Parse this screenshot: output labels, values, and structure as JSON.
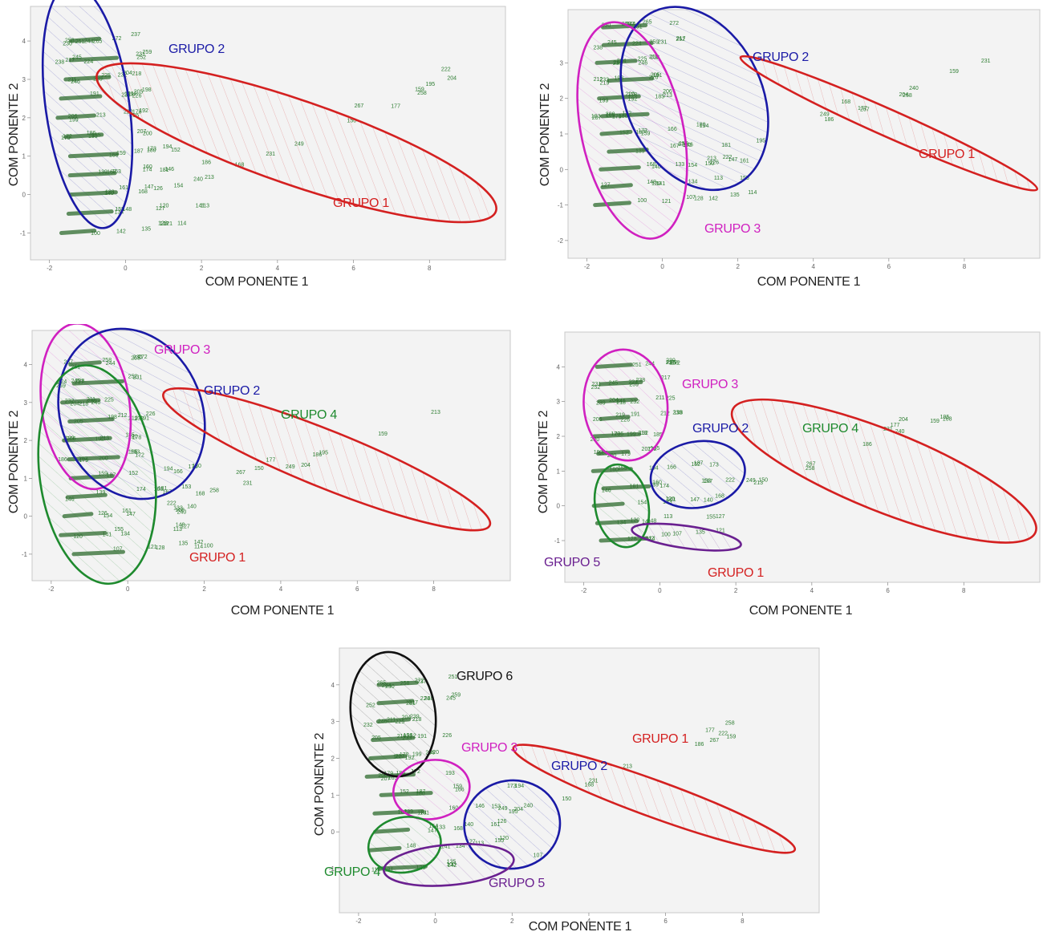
{
  "chart_data": [
    {
      "type": "scatter",
      "xlabel": "COM PONENTE 1",
      "ylabel": "COM PONENTE 2",
      "xticks": [
        "-2",
        "0",
        "2",
        "4",
        "6",
        "8"
      ],
      "yticks": [
        "-1",
        "0",
        "1",
        "2",
        "3",
        "4"
      ],
      "xlim": [
        -2.5,
        10
      ],
      "ylim": [
        -1.7,
        4.9
      ],
      "groups": [
        {
          "name": "GRUPO 2",
          "color": "#1a1aa6",
          "cx": -1,
          "cy": 2.3,
          "rx": 1.1,
          "ry": 3.2,
          "angle": -8
        },
        {
          "name": "GRUPO 1",
          "color": "#d42020",
          "cx": 4.5,
          "cy": 1.35,
          "rx": 5.55,
          "ry": 1.1,
          "angle": 19
        }
      ]
    },
    {
      "type": "scatter",
      "xlabel": "COM PONENTE 1",
      "ylabel": "COM PONENTE 2",
      "xticks": [
        "-2",
        "0",
        "2",
        "4",
        "6",
        "8"
      ],
      "yticks": [
        "-2",
        "-1",
        "0",
        "1",
        "2",
        "3"
      ],
      "xlim": [
        -2.5,
        10
      ],
      "ylim": [
        -2.5,
        4.5
      ],
      "groups": [
        {
          "name": "GRUPO 2",
          "color": "#1a1aa6",
          "cx": 0.85,
          "cy": 2.0,
          "rx": 1.8,
          "ry": 2.7,
          "angle": -25
        },
        {
          "name": "GRUPO 3",
          "color": "#d020c0",
          "cx": -0.8,
          "cy": 1.1,
          "rx": 1.35,
          "ry": 3.1,
          "angle": -12
        },
        {
          "name": "GRUPO 1",
          "color": "#d42020",
          "cx": 6,
          "cy": 1.3,
          "rx": 4.3,
          "ry": 0.38,
          "angle": 24
        }
      ]
    },
    {
      "type": "scatter",
      "xlabel": "COM PONENTE 1",
      "ylabel": "COM PONENTE 2",
      "xticks": [
        "-2",
        "0",
        "2",
        "4",
        "6",
        "8"
      ],
      "yticks": [
        "-1",
        "0",
        "1",
        "2",
        "3",
        "4"
      ],
      "xlim": [
        -2.5,
        10
      ],
      "ylim": [
        -1.7,
        4.9
      ],
      "groups": [
        {
          "name": "GRUPO 3",
          "color": "#d020c0",
          "cx": -1.1,
          "cy": 2.9,
          "rx": 1.15,
          "ry": 2.2,
          "angle": -8
        },
        {
          "name": "GRUPO 2",
          "color": "#1a1aa6",
          "cx": 0.1,
          "cy": 2.7,
          "rx": 1.85,
          "ry": 2.3,
          "angle": -22
        },
        {
          "name": "GRUPO 4",
          "color": "#1e8a2e",
          "cx": -0.8,
          "cy": 1.1,
          "rx": 1.5,
          "ry": 2.9,
          "angle": -8
        },
        {
          "name": "GRUPO 1",
          "color": "#d42020",
          "cx": 5.2,
          "cy": 1.5,
          "rx": 4.6,
          "ry": 0.75,
          "angle": 22
        }
      ]
    },
    {
      "type": "scatter",
      "xlabel": "COM PONENTE 1",
      "ylabel": "COM PONENTE 2",
      "xticks": [
        "-2",
        "0",
        "2",
        "4",
        "6",
        "8"
      ],
      "yticks": [
        "-1",
        "0",
        "1",
        "2",
        "3",
        "4"
      ],
      "xlim": [
        -2.5,
        10
      ],
      "ylim": [
        -2.2,
        5
      ],
      "groups": [
        {
          "name": "GRUPO 3",
          "color": "#d020c0",
          "cx": -0.9,
          "cy": 2.9,
          "rx": 1.1,
          "ry": 1.6,
          "angle": -6
        },
        {
          "name": "GRUPO 2",
          "color": "#1a1aa6",
          "cx": 1,
          "cy": 0.9,
          "rx": 1.25,
          "ry": 0.95,
          "angle": -10
        },
        {
          "name": "GRUPO 4",
          "color": "#1e8a2e",
          "cx": -1,
          "cy": 0,
          "rx": 0.7,
          "ry": 1.2,
          "angle": -10
        },
        {
          "name": "GRUPO 5",
          "color": "#6a2090",
          "cx": 0.7,
          "cy": -0.9,
          "rx": 1.45,
          "ry": 0.32,
          "angle": 8
        },
        {
          "name": "GRUPO 1",
          "color": "#d42020",
          "cx": 5.9,
          "cy": 1,
          "rx": 4.3,
          "ry": 1.15,
          "angle": 22
        }
      ]
    },
    {
      "type": "scatter",
      "xlabel": "COM PONENTE 1",
      "ylabel": "COM PONENTE 2",
      "xticks": [
        "-2",
        "0",
        "2",
        "4",
        "6",
        "8"
      ],
      "yticks": [
        "-1",
        "0",
        "1",
        "2",
        "3",
        "4"
      ],
      "xlim": [
        -2.5,
        10
      ],
      "ylim": [
        -2.2,
        5
      ],
      "groups": [
        {
          "name": "GRUPO 6",
          "color": "#111111",
          "cx": -1.1,
          "cy": 3.2,
          "rx": 1.1,
          "ry": 1.7,
          "angle": -8
        },
        {
          "name": "GRUPO 3",
          "color": "#d020c0",
          "cx": -0.1,
          "cy": 1.15,
          "rx": 1.0,
          "ry": 0.8,
          "angle": -10
        },
        {
          "name": "GRUPO 2",
          "color": "#1a1aa6",
          "cx": 2,
          "cy": 0.2,
          "rx": 1.25,
          "ry": 1.2,
          "angle": -8
        },
        {
          "name": "GRUPO 4",
          "color": "#1e8a2e",
          "cx": -0.8,
          "cy": -0.35,
          "rx": 0.95,
          "ry": 0.75,
          "angle": -10
        },
        {
          "name": "GRUPO 5",
          "color": "#6a2090",
          "cx": 0.35,
          "cy": -0.9,
          "rx": 1.7,
          "ry": 0.55,
          "angle": -5
        },
        {
          "name": "GRUPO 1",
          "color": "#d42020",
          "cx": 5.7,
          "cy": 0.9,
          "rx": 3.9,
          "ry": 0.5,
          "angle": 20
        }
      ]
    }
  ]
}
